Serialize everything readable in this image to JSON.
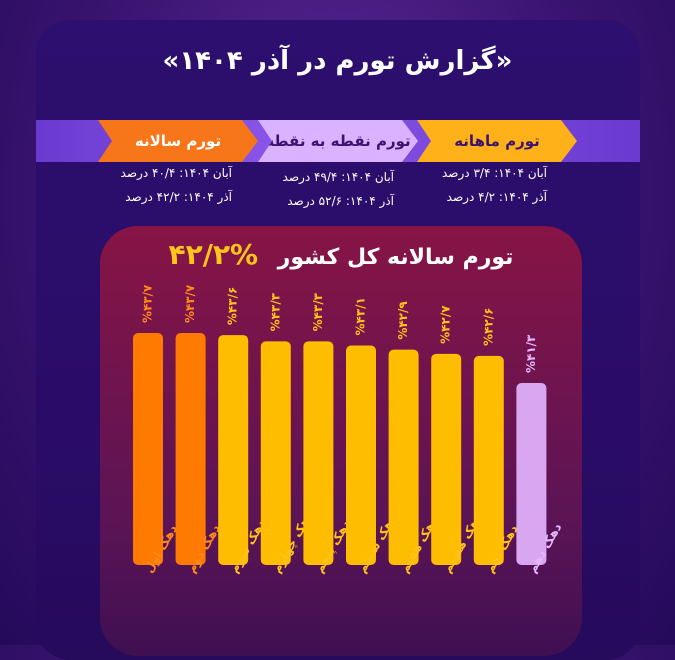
{
  "header": {
    "title": "«گزارش تورم در آذر ۱۴۰۴»"
  },
  "tabs": {
    "annual": {
      "label": "تورم سالانه",
      "color": "#f7761a",
      "lines": [
        "آبان ۱۴۰۴: ۴۰/۴ درصد",
        "آذر ۱۴۰۴: ۴۲/۲ درصد"
      ]
    },
    "point": {
      "label": "تورم نقطه به نقطه",
      "color": "#d9b3ff",
      "lines": [
        "آبان ۱۴۰۴: ۴۹/۴ درصد",
        "آذر ۱۴۰۴: ۵۲/۶ درصد"
      ]
    },
    "monthly": {
      "label": "تورم ماهانه",
      "color": "#ffb11a",
      "lines": [
        "آبان ۱۴۰۴: ۳/۴ درصد",
        "آذر ۱۴۰۴: ۴/۲ درصد"
      ]
    }
  },
  "chart_data": {
    "type": "bar",
    "title": "تورم سالانه کل کشور",
    "subtitle": "%۴۲/۲",
    "categories": [
      "دهک اول",
      "دهک دوم",
      "دهک سوم",
      "دهک چهارم",
      "دهک پنجم",
      "دهک ششم",
      "دهک هفتم",
      "دهک هشتم",
      "دهک نهم",
      "دهک دهم"
    ],
    "values": [
      43.7,
      43.7,
      43.6,
      43.3,
      43.3,
      43.1,
      42.9,
      42.7,
      42.6,
      41.3
    ],
    "value_labels": [
      "%۴۳/۷",
      "%۴۳/۷",
      "%۴۳/۶",
      "%۴۳/۳",
      "%۴۳/۳",
      "%۴۳/۱",
      "%۴۲/۹",
      "%۴۲/۷",
      "%۴۲/۶",
      "%۴۱/۳"
    ],
    "colors": [
      "#ff7a00",
      "#ff7a00",
      "#ffbd00",
      "#ffbd00",
      "#ffbd00",
      "#ffbd00",
      "#ffbd00",
      "#ffbd00",
      "#ffbd00",
      "#d9a7f2"
    ],
    "label_colors": [
      "#ff8a1a",
      "#ff8a1a",
      "#ffc21a",
      "#ffc21a",
      "#ffc21a",
      "#ffc21a",
      "#ffc21a",
      "#ffc21a",
      "#ffc21a",
      "#e4b8ff"
    ],
    "ylim": [
      0,
      44
    ]
  }
}
